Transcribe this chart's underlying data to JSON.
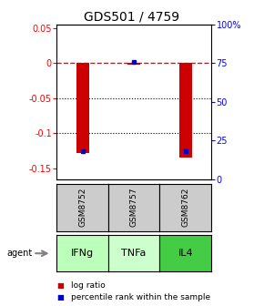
{
  "title": "GDS501 / 4759",
  "samples": [
    "GSM8752",
    "GSM8757",
    "GSM8762"
  ],
  "agents": [
    "IFNg",
    "TNFa",
    "IL4"
  ],
  "log_ratios": [
    -0.128,
    -0.002,
    -0.135
  ],
  "percentile_ranks": [
    0.18,
    0.76,
    0.18
  ],
  "ylim_left": [
    -0.165,
    0.055
  ],
  "yticks_left": [
    0.05,
    0.0,
    -0.05,
    -0.1,
    -0.15
  ],
  "yticks_right": [
    1.0,
    0.75,
    0.5,
    0.25,
    0.0
  ],
  "ytick_labels_left": [
    "0.05",
    "0",
    "-0.05",
    "-0.1",
    "-0.15"
  ],
  "ytick_labels_right": [
    "100%",
    "75",
    "50",
    "25",
    "0"
  ],
  "bar_color": "#cc0000",
  "dot_color": "#0000cc",
  "bar_width": 0.25,
  "agent_colors": [
    "#bbffbb",
    "#ccffcc",
    "#44cc44"
  ],
  "sample_bg_color": "#cccccc",
  "hline_y": 0.0,
  "dotted_lines": [
    -0.05,
    -0.1
  ],
  "background_color": "#ffffff",
  "title_fontsize": 10,
  "legend_fontsize": 6.5,
  "tick_fontsize": 7,
  "sample_fontsize": 6.5,
  "agent_fontsize": 8
}
